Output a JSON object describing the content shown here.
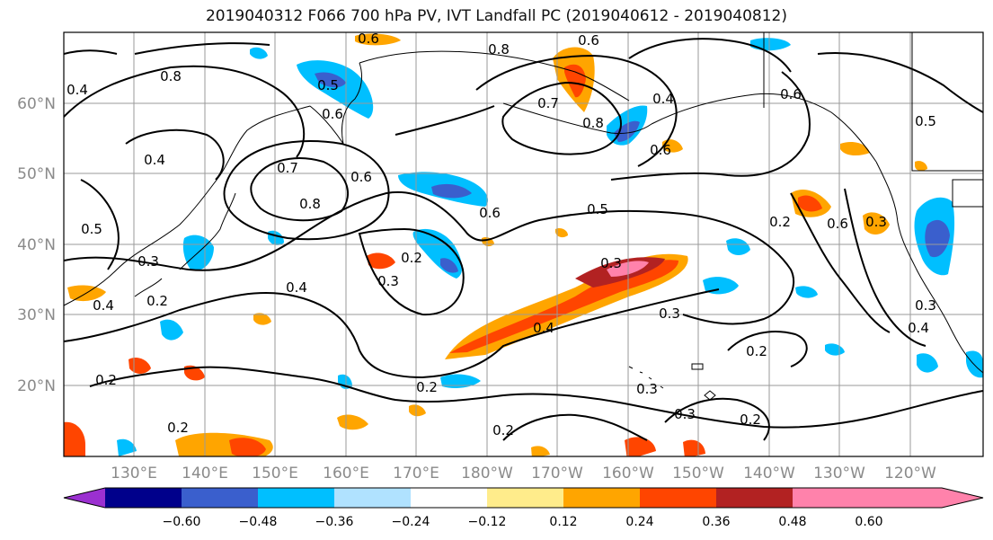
{
  "title": "2019040312 F066 700 hPa PV, IVT Landfall PC (2019040612 - 2019040812)",
  "lat_ticks": [
    "60°N",
    "50°N",
    "40°N",
    "30°N",
    "20°N"
  ],
  "lon_ticks": [
    "130°E",
    "140°E",
    "150°E",
    "160°E",
    "170°E",
    "180°W",
    "170°W",
    "160°W",
    "150°W",
    "140°W",
    "130°W",
    "120°W"
  ],
  "contour_labels": [
    "0.4",
    "0.8",
    "0.5",
    "0.6",
    "0.8",
    "0.6",
    "0.7",
    "0.6",
    "0.8",
    "0.4",
    "0.5",
    "0.4",
    "0.6",
    "0.7",
    "0.8",
    "0.6",
    "0.6",
    "0.5",
    "0.6",
    "0.6",
    "0.3",
    "0.2",
    "0.3",
    "0.3",
    "0.2",
    "0.4",
    "0.4",
    "0.3",
    "0.3",
    "0.4",
    "0.3",
    "0.2",
    "0.2",
    "0.2",
    "0.3",
    "0.3",
    "0.2",
    "0.2",
    "0.2",
    "0.2",
    "0.5",
    "0.4"
  ],
  "colorbar": {
    "colors": [
      "#9b30d0",
      "#00008b",
      "#3a5fcd",
      "#00bfff",
      "#b0e2ff",
      "#ffffff",
      "#ffec8b",
      "#ffa500",
      "#ff4500",
      "#b22222",
      "#ff82ab"
    ],
    "tick_labels": [
      "−0.60",
      "−0.48",
      "−0.36",
      "−0.24",
      "−0.12",
      "0.12",
      "0.24",
      "0.36",
      "0.48",
      "0.60"
    ]
  }
}
